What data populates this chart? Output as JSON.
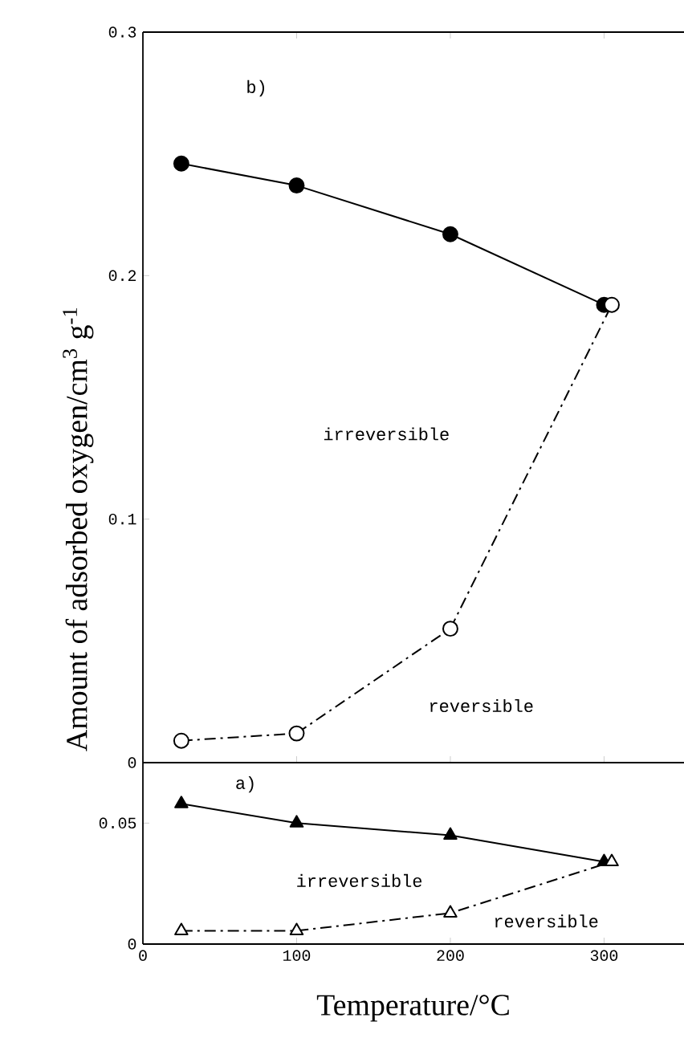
{
  "chart_data": [
    {
      "type": "line",
      "ylabel": "Amount of adsorbed oxygen/cm$^{3}$ g$^{-1}$",
      "xlim": [
        0,
        352
      ],
      "xticks": [
        0,
        100,
        200,
        300
      ],
      "ylim": [
        0,
        0.3
      ],
      "yticks": [
        0,
        0.1,
        0.2,
        0.3
      ],
      "tick_labels": "y",
      "grid": false,
      "series": [
        {
          "color": "#000000",
          "x": [
            25,
            100,
            200,
            300
          ],
          "values": [
            0.246,
            0.237,
            0.217,
            0.188
          ],
          "marker": "circle",
          "line_style": "solid"
        },
        {
          "color": "#000000",
          "x": [
            25,
            100,
            200,
            305
          ],
          "values": [
            0.009,
            0.012,
            0.055,
            0.188
          ],
          "marker": "circle",
          "line_style": "dashdot"
        }
      ],
      "annotations": [
        "b)",
        "irreversible",
        "reversible"
      ]
    },
    {
      "type": "line",
      "xlabel": "Temperature/°C",
      "xlim": [
        0,
        352
      ],
      "xticks": [
        0,
        100,
        200,
        300
      ],
      "ylim": [
        0,
        0.075
      ],
      "yticks": [
        0,
        0.05
      ],
      "grid": false,
      "series": [
        {
          "color": "#000000",
          "x": [
            25,
            100,
            200,
            300
          ],
          "values": [
            0.058,
            0.05,
            0.045,
            0.034
          ],
          "marker": "triangle",
          "line_style": "solid"
        },
        {
          "color": "#000000",
          "x": [
            25,
            100,
            200,
            305
          ],
          "values": [
            0.0055,
            0.0055,
            0.0128,
            0.034
          ],
          "marker": "triangle",
          "line_style": "dashdot"
        }
      ],
      "annotations": [
        "a)",
        "irreversible",
        "reversible"
      ]
    }
  ]
}
